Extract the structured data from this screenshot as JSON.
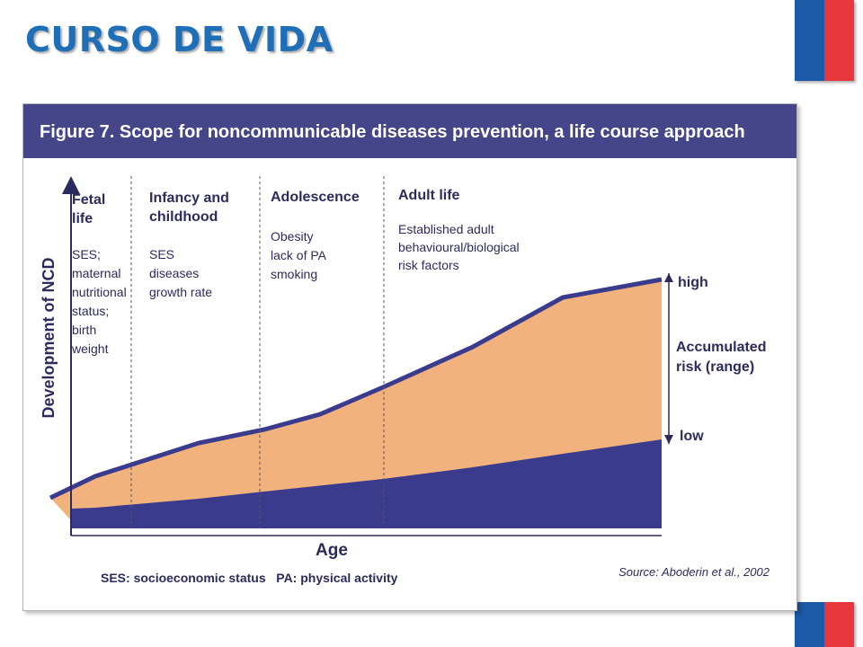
{
  "slide": {
    "title": "CURSO DE VIDA"
  },
  "figure": {
    "title": "Figure 7. Scope for noncommunicable diseases prevention, a life course approach",
    "y_axis_label": "Development of NCD",
    "x_axis_label": "Age",
    "stages": [
      {
        "title": [
          "Fetal",
          "life"
        ],
        "factors": [
          "SES;",
          "maternal",
          "nutritional",
          "status;",
          "birth",
          "weight"
        ]
      },
      {
        "title": [
          "Infancy and",
          "childhood"
        ],
        "factors": [
          "SES",
          "diseases",
          "growth rate"
        ]
      },
      {
        "title": [
          "Adolescence"
        ],
        "factors": [
          "Obesity",
          "lack of PA",
          "smoking"
        ]
      },
      {
        "title": [
          "Adult life"
        ],
        "factors": [
          "Established adult",
          "behavioural/biological",
          "risk factors"
        ]
      }
    ],
    "range_labels": {
      "high": "high",
      "accumulated": [
        "Accumulated",
        "risk (range)"
      ],
      "low": "low"
    },
    "footnote": "SES: socioeconomic status   PA: physical activity",
    "source": "Source: Aboderin et al., 2002"
  },
  "colors": {
    "title_blue": "#1f6fb8",
    "header_band": "#45458a",
    "upper_band": "#f2b27d",
    "lower_band": "#3b3b8e",
    "flag_blue": "#1c5aa8",
    "flag_red": "#e8373c"
  }
}
